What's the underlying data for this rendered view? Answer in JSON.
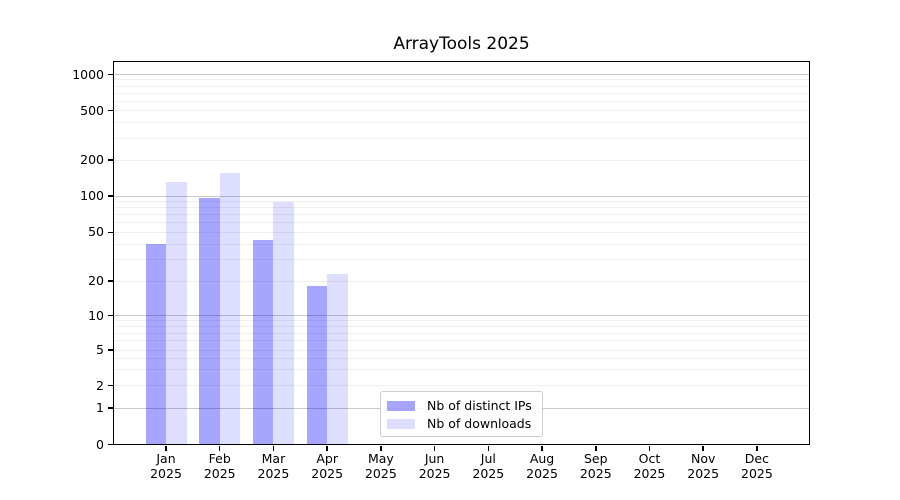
{
  "title": "ArrayTools 2025",
  "legend": {
    "items": [
      {
        "label": "Nb of distinct IPs",
        "color": "#0000ff59"
      },
      {
        "label": "Nb of downloads",
        "color": "#0000ff21"
      }
    ]
  },
  "chart_data": {
    "type": "bar",
    "title": "ArrayTools 2025",
    "categories": [
      "Jan 2025",
      "Feb 2025",
      "Mar 2025",
      "Apr 2025",
      "May 2025",
      "Jun 2025",
      "Jul 2025",
      "Aug 2025",
      "Sep 2025",
      "Oct 2025",
      "Nov 2025",
      "Dec 2025"
    ],
    "series": [
      {
        "name": "Nb of distinct IPs",
        "color": "#0000ff59",
        "values": [
          40,
          97,
          43,
          18,
          null,
          null,
          null,
          null,
          null,
          null,
          null,
          null
        ]
      },
      {
        "name": "Nb of downloads",
        "color": "#0000ff21",
        "values": [
          131,
          157,
          90,
          23,
          null,
          null,
          null,
          null,
          null,
          null,
          null,
          null
        ]
      }
    ],
    "xlabel": "",
    "ylabel": "",
    "yscale": "symlog",
    "yticks": [
      0,
      1,
      2,
      5,
      10,
      20,
      50,
      100,
      200,
      500,
      1000
    ],
    "ylim": [
      0,
      1300
    ],
    "grid": "horizontal major and minor gridlines",
    "legend_position": "lower center"
  }
}
